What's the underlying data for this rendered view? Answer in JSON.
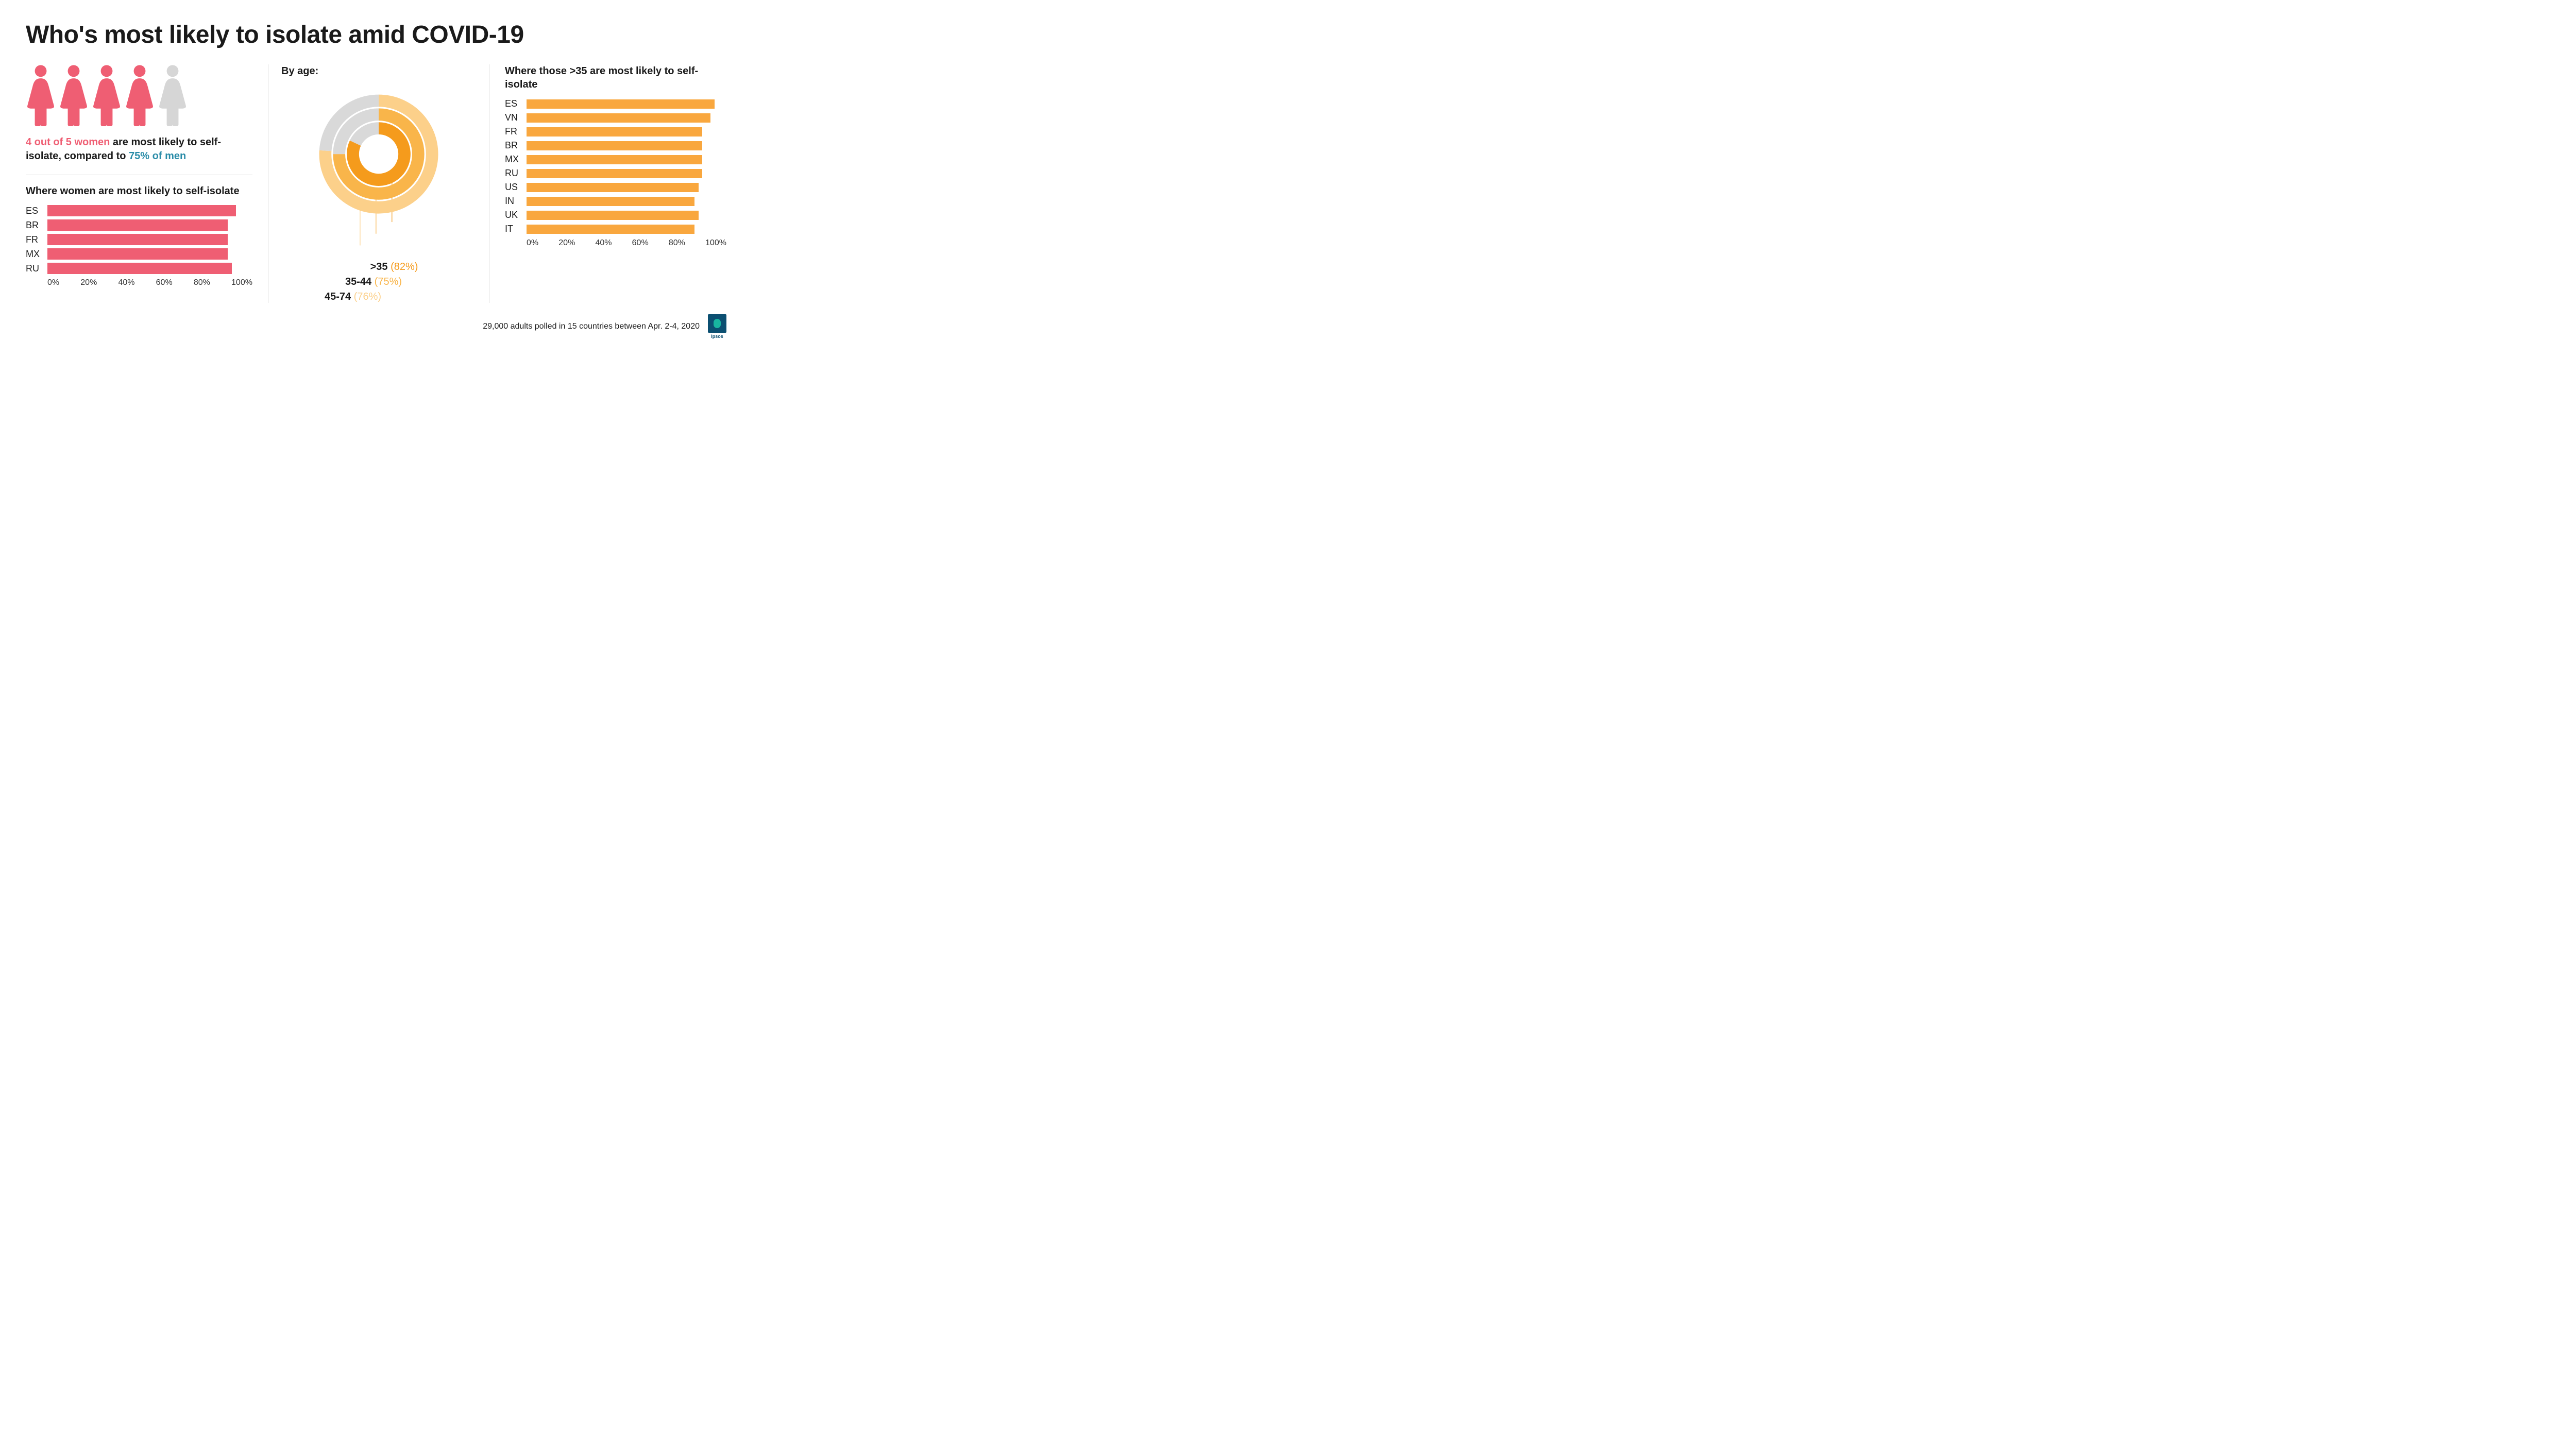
{
  "title": "Who's most likely to isolate amid COVID-19",
  "colors": {
    "pink": "#ef5e73",
    "pink_light": "#f4a1ad",
    "grey_icon": "#d6d6d6",
    "teal": "#2a8ca8",
    "orange_dark": "#f59b1c",
    "orange_mid": "#f9b54a",
    "orange_light": "#fcd08a",
    "grey_ring": "#d9d9d9",
    "divider": "#dcdcdc",
    "text": "#1a1a1a",
    "bg": "#ffffff"
  },
  "women_panel": {
    "icon_count": 5,
    "icon_filled": 4,
    "text_parts": {
      "a": "4 out of 5 women",
      "b": " are most likely to self-isolate, compared to ",
      "c": "75% of men"
    },
    "bar_chart": {
      "title": "Where women are most likely to self-isolate",
      "type": "bar",
      "bar_color": "#ef5e73",
      "xlim": [
        0,
        100
      ],
      "tick_step": 20,
      "ticks": [
        "0%",
        "20%",
        "40%",
        "60%",
        "80%",
        "100%"
      ],
      "data": [
        {
          "label": "ES",
          "value": 92
        },
        {
          "label": "BR",
          "value": 88
        },
        {
          "label": "FR",
          "value": 88
        },
        {
          "label": "MX",
          "value": 88
        },
        {
          "label": "RU",
          "value": 90
        }
      ]
    }
  },
  "age_panel": {
    "title": "By age:",
    "type": "concentric-donut",
    "background_color": "#ffffff",
    "grey_remainder_color": "#d9d9d9",
    "rings": [
      {
        "label": ">35",
        "value": 82,
        "color": "#f59b1c",
        "radius_outer": 60,
        "radius_inner": 37
      },
      {
        "label": "35-44",
        "value": 75,
        "color": "#f9b54a",
        "radius_outer": 86,
        "radius_inner": 63
      },
      {
        "label": "45-74",
        "value": 76,
        "color": "#fcd08a",
        "radius_outer": 112,
        "radius_inner": 89
      }
    ],
    "legend": [
      {
        "label": ">35",
        "pct": "(82%)",
        "pct_color": "#f59b1c"
      },
      {
        "label": "35-44",
        "pct": "(75%)",
        "pct_color": "#f9b54a"
      },
      {
        "label": "45-74",
        "pct": "(76%)",
        "pct_color": "#fcd08a"
      }
    ]
  },
  "over35_panel": {
    "title": "Where those >35 are most likely to self-isolate",
    "type": "bar",
    "bar_color": "#f9a73e",
    "xlim": [
      0,
      100
    ],
    "tick_step": 20,
    "ticks": [
      "0%",
      "20%",
      "40%",
      "60%",
      "80%",
      "100%"
    ],
    "data": [
      {
        "label": "ES",
        "value": 94
      },
      {
        "label": "VN",
        "value": 92
      },
      {
        "label": "FR",
        "value": 88
      },
      {
        "label": "BR",
        "value": 88
      },
      {
        "label": "MX",
        "value": 88
      },
      {
        "label": "RU",
        "value": 88
      },
      {
        "label": "US",
        "value": 86
      },
      {
        "label": "IN",
        "value": 84
      },
      {
        "label": "UK",
        "value": 86
      },
      {
        "label": "IT",
        "value": 84
      }
    ]
  },
  "footer": {
    "text": "29,000 adults polled in 15 countries between Apr. 2-4, 2020",
    "logo_label": "Ipsos"
  }
}
